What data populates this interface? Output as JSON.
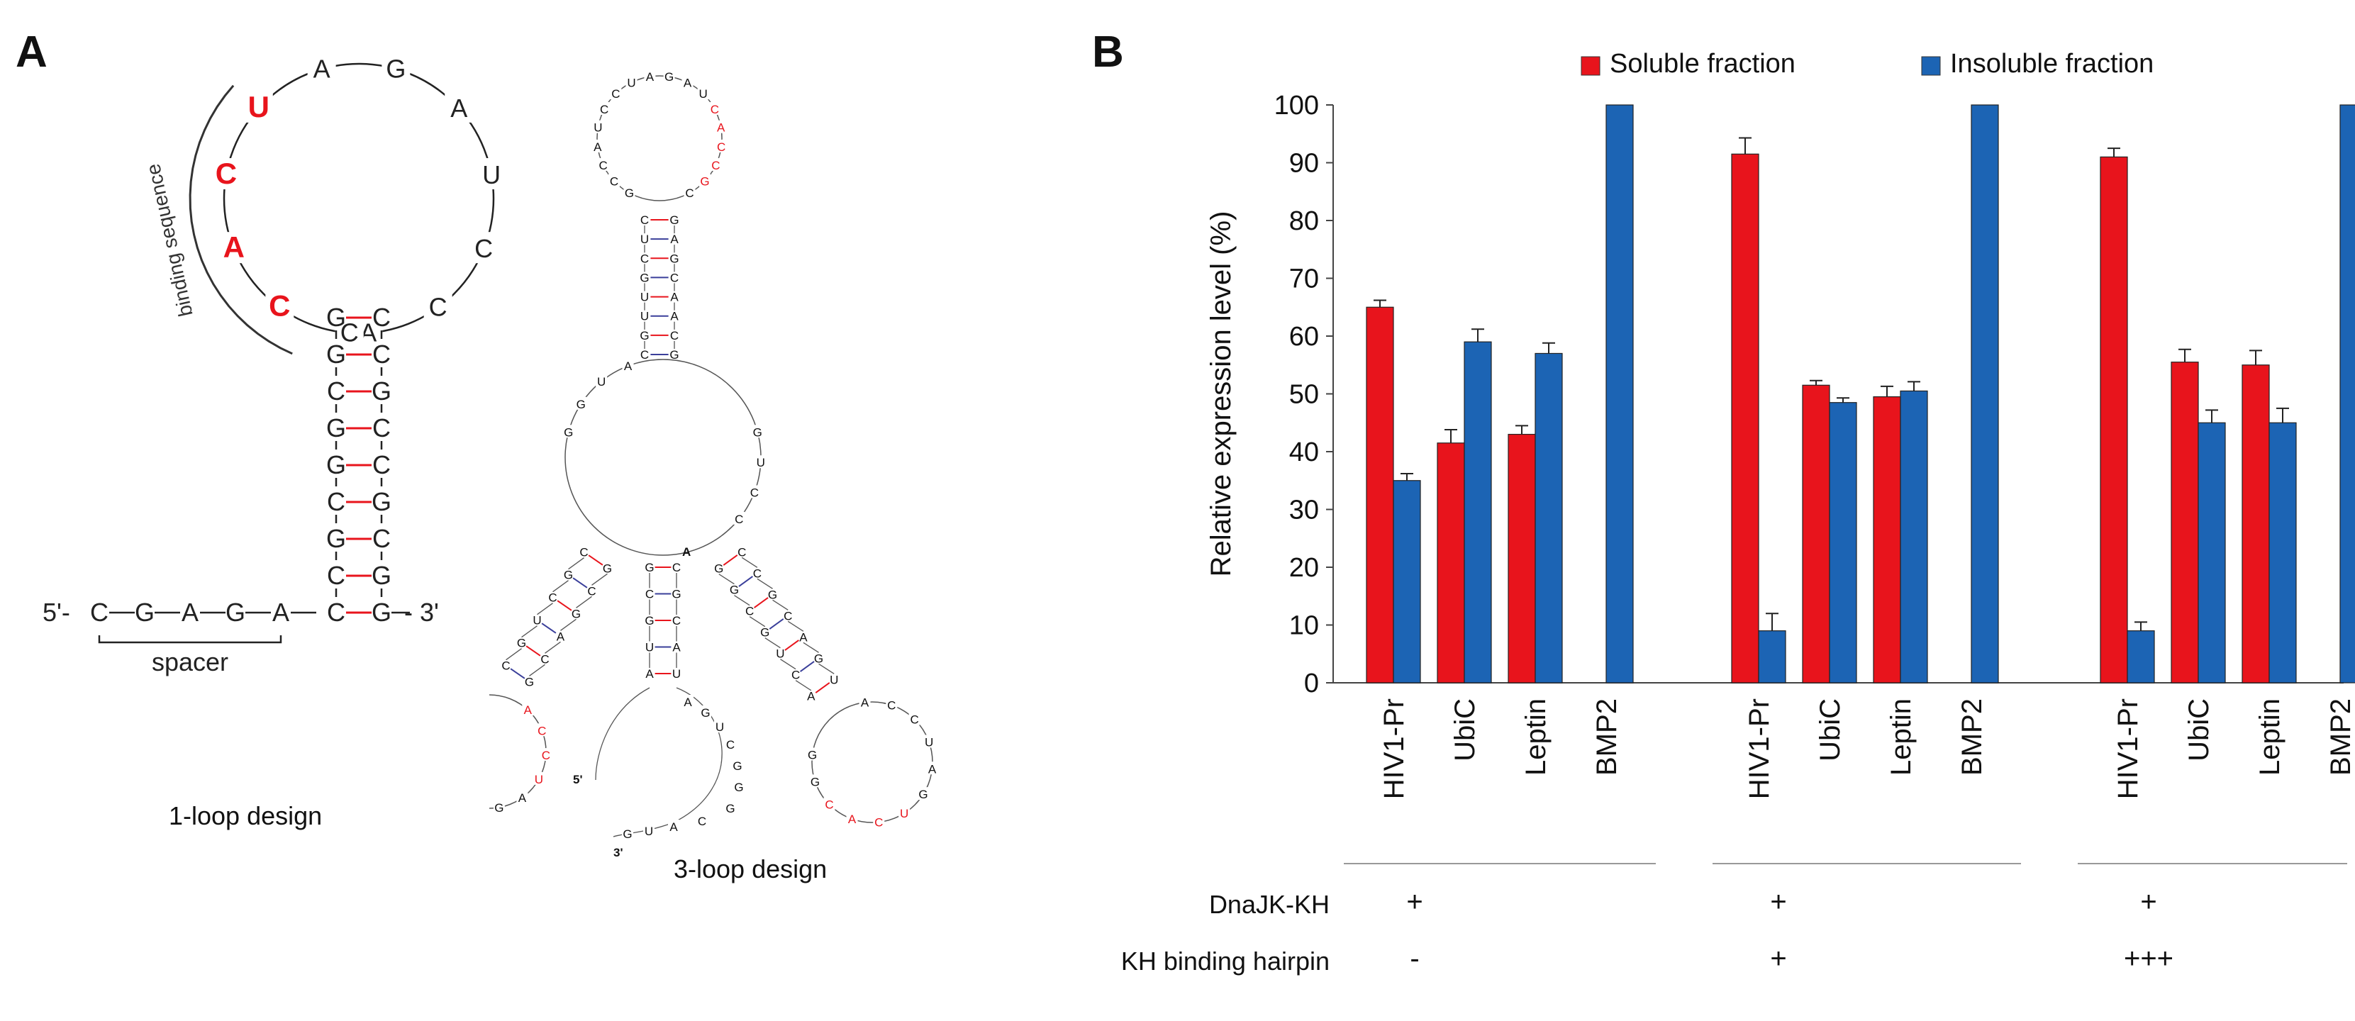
{
  "panel_a": {
    "label": "A",
    "one_loop": {
      "caption": "1-loop design",
      "loop_left": [
        "A",
        "C",
        "C",
        "U",
        "A",
        "G",
        "A"
      ],
      "binding": [
        "U",
        "C",
        "A",
        "C"
      ],
      "binding_label": "binding sequence",
      "loop_right_last": "C",
      "stem_left": [
        "G",
        "G",
        "C",
        "G",
        "G",
        "C",
        "G",
        "C",
        "C"
      ],
      "stem_right": [
        "C",
        "C",
        "G",
        "C",
        "C",
        "G",
        "C",
        "G",
        "G"
      ],
      "five_prime": "5'-",
      "three_prime": "- 3'",
      "spacer_seq": [
        "C",
        "G",
        "A",
        "G",
        "A"
      ],
      "spacer_label": "spacer"
    },
    "three_loop": {
      "caption": "3-loop design",
      "top_loop": [
        "G",
        "C",
        "C",
        "A",
        "U",
        "C",
        "C",
        "U",
        "A",
        "G",
        "A",
        "U",
        "C",
        "A",
        "C",
        "C",
        "G",
        "C"
      ],
      "top_stem_left": [
        "C",
        "U",
        "C",
        "G",
        "U",
        "U",
        "G",
        "C"
      ],
      "top_stem_right": [
        "G",
        "A",
        "G",
        "C",
        "A",
        "A",
        "C",
        "G"
      ],
      "center_left": [
        "G",
        "G",
        "U",
        "A"
      ],
      "center_right": [
        "G",
        "U",
        "C",
        "C"
      ],
      "left_stem_top": [
        "C",
        "G",
        "C",
        "U",
        "G",
        "C"
      ],
      "left_stem_bottom": [
        "G",
        "C",
        "G",
        "A",
        "C",
        "G"
      ],
      "left_loop": [
        "A",
        "C",
        "C",
        "U",
        "A",
        "G",
        "A",
        "U",
        "C",
        "A",
        "A"
      ],
      "right_stem_top": [
        "G",
        "G",
        "C",
        "G",
        "U",
        "C",
        "A"
      ],
      "right_stem_bottom": [
        "C",
        "C",
        "G",
        "C",
        "A",
        "G",
        "U"
      ],
      "right_loop": [
        "A",
        "C",
        "C",
        "U",
        "A",
        "G",
        "U",
        "C",
        "A",
        "C",
        "G",
        "G"
      ],
      "mid_stem_left": [
        "G",
        "C",
        "G",
        "U",
        "A"
      ],
      "mid_stem_right": [
        "C",
        "G",
        "C",
        "A",
        "U"
      ],
      "tail": [
        "A",
        "G",
        "U",
        "C",
        "G",
        "G",
        "G",
        "C",
        "A",
        "U",
        "G"
      ],
      "five_prime": "5'",
      "three_prime": "3'",
      "center_a": "A"
    }
  },
  "panel_b": {
    "label": "B",
    "conditions": {
      "row1_label": "DnaJK-KH",
      "row2_label": "KH binding hairpin",
      "row1_values": [
        "+",
        "+",
        "+"
      ],
      "row2_values": [
        "-",
        "+",
        "+++"
      ]
    }
  },
  "chart_data": {
    "type": "bar",
    "ylabel": "Relative expression level (%)",
    "xlabel": "",
    "ylim": [
      0,
      100
    ],
    "yticks": [
      0,
      10,
      20,
      30,
      40,
      50,
      60,
      70,
      80,
      90,
      100
    ],
    "legend": "top",
    "grid": false,
    "groups": [
      {
        "categories": [
          "HIV1-Pr",
          "UbiC",
          "Leptin",
          "BMP2"
        ]
      },
      {
        "categories": [
          "HIV1-Pr",
          "UbiC",
          "Leptin",
          "BMP2"
        ]
      },
      {
        "categories": [
          "HIV1-Pr",
          "UbiC",
          "Leptin",
          "BMP2"
        ]
      }
    ],
    "series": [
      {
        "name": "Soluble fraction",
        "color": "#e8141c",
        "values": [
          65,
          41.5,
          43,
          0,
          91.5,
          51.5,
          49.5,
          0,
          91,
          55.5,
          55,
          0
        ],
        "errors": [
          1.2,
          2.3,
          1.5,
          0,
          2.8,
          0.8,
          1.8,
          0,
          1.5,
          2.2,
          2.5,
          0
        ]
      },
      {
        "name": "Insoluble fraction",
        "color": "#1c64b4",
        "values": [
          35,
          59,
          57,
          100,
          9,
          48.5,
          50.5,
          100,
          9,
          45,
          45,
          100
        ],
        "errors": [
          1.2,
          2.2,
          1.8,
          0,
          3,
          0.8,
          1.6,
          0,
          1.5,
          2.2,
          2.5,
          0
        ]
      }
    ]
  }
}
